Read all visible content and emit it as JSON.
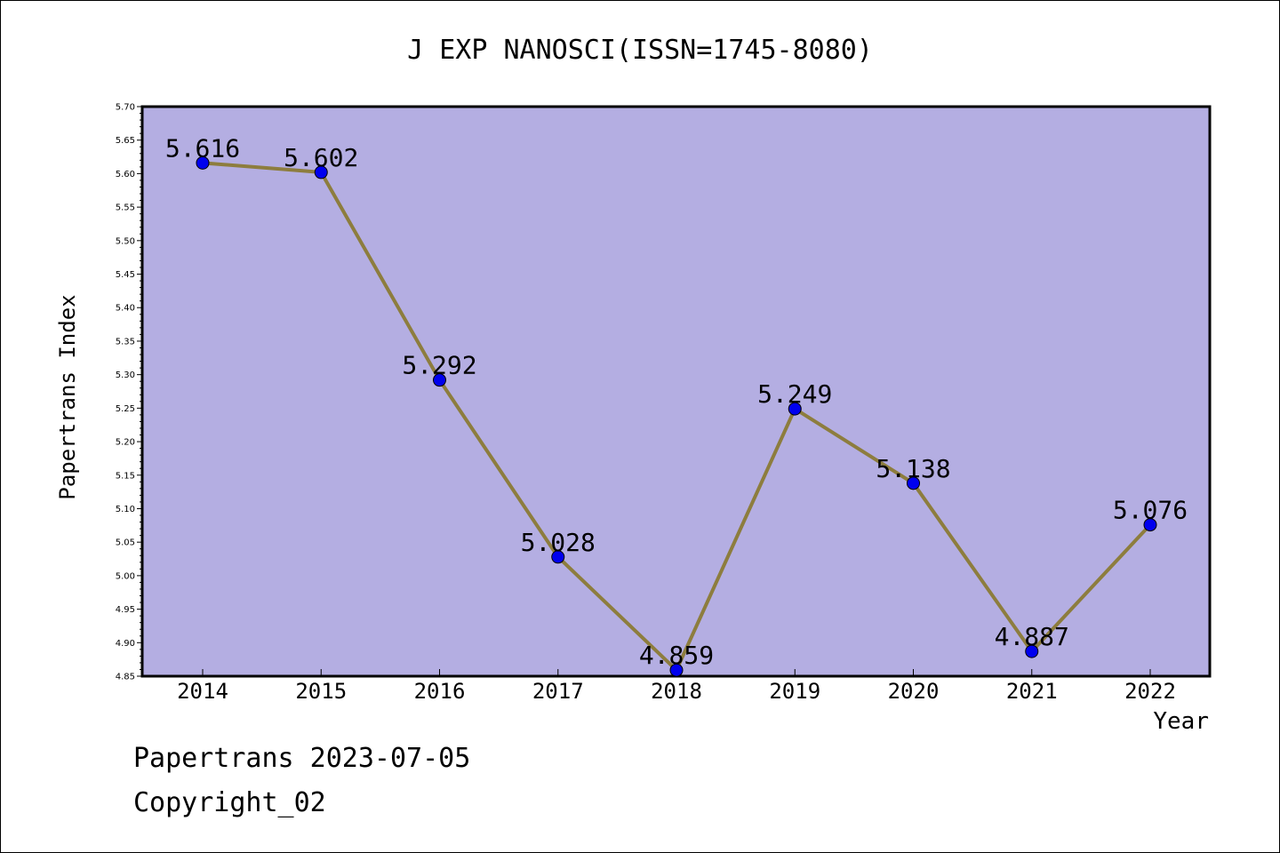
{
  "chart_data": {
    "type": "line",
    "title": "J EXP NANOSCI(ISSN=1745-8080)",
    "xlabel": "Year",
    "ylabel": "Papertrans Index",
    "categories": [
      "2014",
      "2015",
      "2016",
      "2017",
      "2018",
      "2019",
      "2020",
      "2021",
      "2022"
    ],
    "series": [
      {
        "values": [
          5.616,
          5.602,
          5.292,
          5.028,
          4.859,
          5.249,
          5.138,
          4.887,
          5.076
        ],
        "labels": [
          "5.616",
          "5.602",
          "5.292",
          "5.028",
          "4.859",
          "5.249",
          "5.138",
          "4.887",
          "5.076"
        ]
      }
    ],
    "ylim": [
      4.85,
      5.7
    ],
    "yticks": [
      "4.85",
      "4.90",
      "4.95",
      "5.00",
      "5.05",
      "5.10",
      "5.15",
      "5.20",
      "5.25",
      "5.30",
      "5.35",
      "5.40",
      "5.45",
      "5.50",
      "5.55",
      "5.60",
      "5.65",
      "5.70"
    ],
    "grid": false,
    "colors": {
      "plot_background": "#b4aee2",
      "line": "#8d7d3e",
      "marker": "#0000ee"
    }
  },
  "footer": {
    "line1": "Papertrans 2023-07-05",
    "line2": "Copyright_02"
  }
}
